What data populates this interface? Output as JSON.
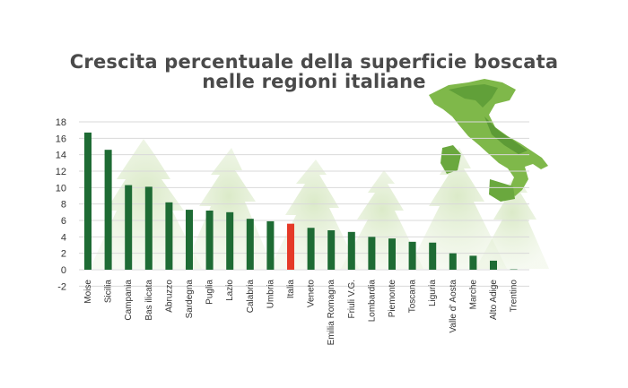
{
  "chart_data": {
    "type": "bar",
    "title_lines": [
      "Crescita percentuale della superficie boscata",
      "nelle regioni italiane"
    ],
    "xlabel": "",
    "ylabel": "",
    "ylim": [
      -2,
      18
    ],
    "yticks": [
      18,
      16,
      14,
      12,
      10,
      8,
      6,
      4,
      2,
      0,
      -2
    ],
    "ytick_labels": [
      "18",
      "16",
      "14",
      "12",
      "10",
      "8",
      "6",
      "4",
      "2",
      "0",
      "-2"
    ],
    "grid": true,
    "categories": [
      "Moise",
      "Sicilia",
      "Campania",
      "Bas ilicata",
      "Abruzzo",
      "Sardegna",
      "Puglia",
      "Lazio",
      "Calabria",
      "Umbria",
      "Italia",
      "Veneto",
      "Emilia Romagna",
      "Friuli V.G.",
      "Lombardia",
      "Piemonte",
      "Toscana",
      "Liguria",
      "Valle d' Aosta",
      "Marche",
      "Alto Adige",
      "Trentino"
    ],
    "values": [
      16.7,
      14.6,
      10.3,
      10.1,
      8.2,
      7.3,
      7.2,
      7.0,
      6.2,
      5.9,
      5.6,
      5.1,
      4.8,
      4.6,
      4.0,
      3.8,
      3.4,
      3.3,
      2.0,
      1.7,
      1.1,
      0.1
    ],
    "colors": {
      "bar": "#1e6b34",
      "highlight": "#e53a28",
      "highlight_category": "Italia",
      "grid": "#d9d9d9"
    }
  }
}
